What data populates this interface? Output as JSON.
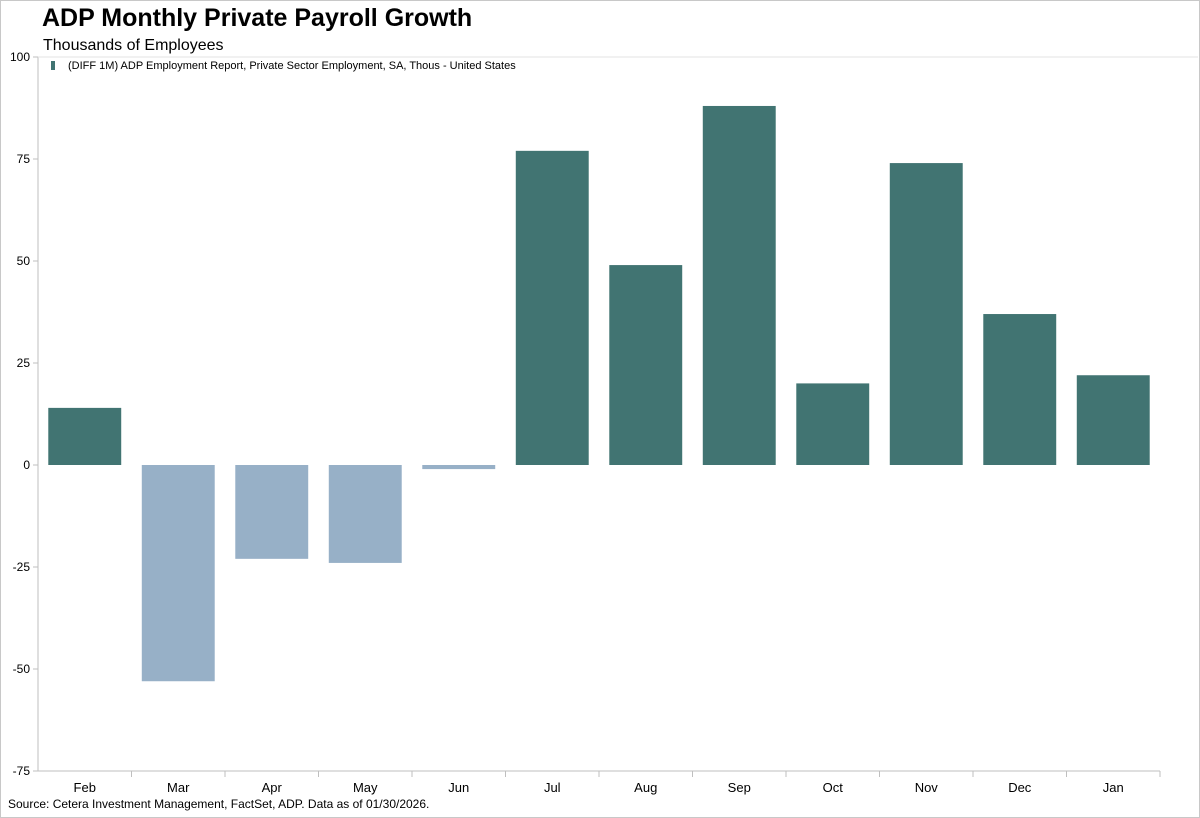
{
  "title": "ADP Monthly Private Payroll Growth",
  "subtitle": "Thousands of Employees",
  "source": "Source: Cetera Investment Management, FactSet, ADP. Data as of 01/30/2026.",
  "colors": {
    "positive": "#417472",
    "negative": "#97b0c7",
    "axis": "#bfbfbf"
  },
  "chart_data": {
    "type": "bar",
    "title": "ADP Monthly Private Payroll Growth",
    "ylabel": "Thousands of Employees",
    "categories": [
      "Feb",
      "Mar",
      "Apr",
      "May",
      "Jun",
      "Jul",
      "Aug",
      "Sep",
      "Oct",
      "Nov",
      "Dec",
      "Jan"
    ],
    "series": [
      {
        "name": "(DIFF 1M) ADP Employment Report, Private Sector Employment, SA, Thous - United States",
        "values": [
          14,
          -53,
          -23,
          -24,
          -1,
          77,
          49,
          88,
          20,
          74,
          37,
          22
        ]
      }
    ],
    "ylim": [
      -75,
      100
    ],
    "yticks": [
      100,
      75,
      50,
      25,
      0,
      -25,
      -50,
      -75
    ],
    "legend_position": "top-left",
    "grid": false
  }
}
